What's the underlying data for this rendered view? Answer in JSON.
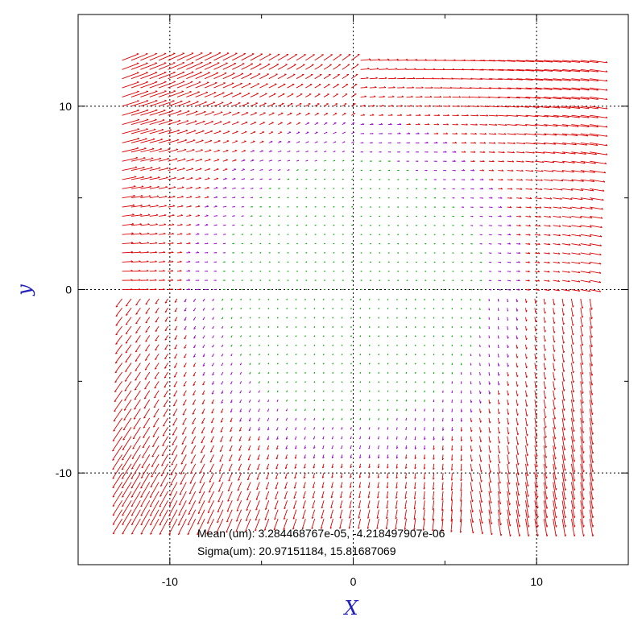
{
  "chart_data": {
    "type": "scatter",
    "subtype": "quiver",
    "title": "",
    "xlabel": "X",
    "ylabel": "y",
    "xlim": [
      -15,
      15
    ],
    "ylim": [
      -15,
      15
    ],
    "xticks": [
      -10,
      0,
      10
    ],
    "yticks": [
      -10,
      0,
      10
    ],
    "xtick_labels": [
      "-10",
      "0",
      "10"
    ],
    "ytick_labels": [
      "-10",
      "0",
      "10"
    ],
    "grid": "dotted at -10, 0, 10",
    "legend": "none",
    "grid_extent": {
      "x": [
        -12.6,
        13.2
      ],
      "y": [
        -12.5,
        12.6
      ],
      "spacing": 0.5
    },
    "arrow_colors": {
      "large": "#dd0000",
      "medium": "#9900cc",
      "small": "#00aa00"
    },
    "stats": {
      "mean_label": "Mean (um):",
      "mean_values": "3.284468767e-05, -4.218497907e-06",
      "sigma_label": "Sigma(um):",
      "sigma_values": "20.97151184, 15.81687069"
    }
  }
}
